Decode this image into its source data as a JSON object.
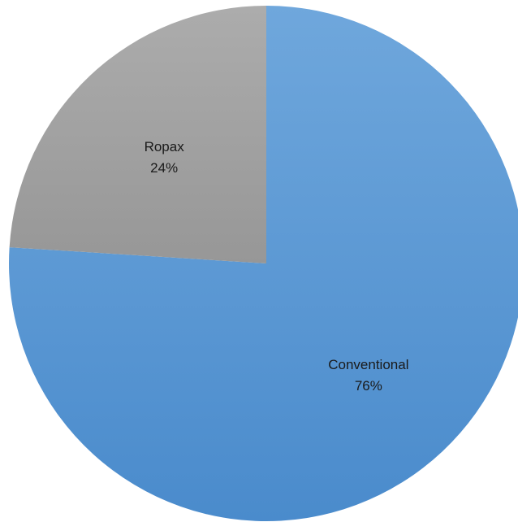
{
  "chart_data": {
    "type": "pie",
    "slices": [
      {
        "label": "Conventional",
        "value": 76,
        "display": "76%",
        "color": "#5b9bd5"
      },
      {
        "label": "Ropax",
        "value": 24,
        "display": "24%",
        "color": "#a5a5a5"
      }
    ],
    "start_angle_deg": 0,
    "direction": "clockwise",
    "legend": "none"
  }
}
